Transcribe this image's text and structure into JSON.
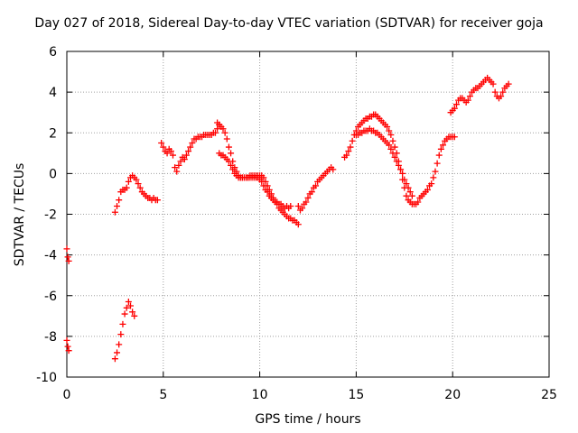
{
  "chart_data": {
    "type": "scatter",
    "title": "Day 027 of 2018, Sidereal Day-to-day VTEC variation (SDTVAR) for receiver goja",
    "xlabel": "GPS time / hours",
    "ylabel": "SDTVAR / TECUs",
    "xlim": [
      0,
      25
    ],
    "ylim": [
      -10,
      6
    ],
    "xticks": [
      0,
      5,
      10,
      15,
      20,
      25
    ],
    "yticks": [
      -10,
      -8,
      -6,
      -4,
      -2,
      0,
      2,
      4,
      6
    ],
    "grid": true,
    "marker": "+",
    "color": "#ff0000",
    "series": [
      {
        "name": "seg1",
        "x": [
          0.0,
          0.05,
          0.1
        ],
        "y": [
          -3.7,
          -4.1,
          -4.3
        ]
      },
      {
        "name": "seg2",
        "x": [
          0.0,
          0.05,
          0.1
        ],
        "y": [
          -8.2,
          -8.5,
          -8.7
        ]
      },
      {
        "name": "seg3",
        "x": [
          2.5,
          2.6,
          2.7,
          2.8,
          2.9,
          3.0,
          3.1,
          3.2,
          3.3,
          3.4,
          3.5
        ],
        "y": [
          -9.1,
          -8.8,
          -8.4,
          -7.9,
          -7.4,
          -6.9,
          -6.6,
          -6.3,
          -6.5,
          -6.8,
          -7.0
        ]
      },
      {
        "name": "seg4",
        "x": [
          2.5,
          2.6,
          2.7,
          2.8,
          2.9,
          3.0,
          3.1,
          3.2,
          3.3,
          3.4,
          3.5,
          3.6,
          3.7,
          3.8,
          3.9,
          4.0,
          4.1,
          4.2,
          4.3,
          4.4,
          4.5,
          4.6,
          4.7
        ],
        "y": [
          -1.9,
          -1.6,
          -1.3,
          -0.9,
          -0.8,
          -0.8,
          -0.7,
          -0.4,
          -0.2,
          -0.1,
          -0.2,
          -0.3,
          -0.5,
          -0.7,
          -0.9,
          -1.0,
          -1.1,
          -1.2,
          -1.2,
          -1.3,
          -1.2,
          -1.3,
          -1.3
        ]
      },
      {
        "name": "seg5",
        "x": [
          4.9,
          5.0,
          5.1,
          5.2,
          5.3,
          5.4,
          5.5,
          5.6,
          5.7,
          5.8,
          5.9,
          6.0,
          6.1,
          6.2,
          6.3,
          6.4,
          6.5,
          6.6,
          6.7,
          6.8,
          6.9,
          7.0,
          7.1,
          7.2,
          7.3,
          7.4,
          7.5,
          7.6,
          7.7,
          7.8,
          7.9
        ],
        "y": [
          1.5,
          1.3,
          1.1,
          1.0,
          1.2,
          1.1,
          0.9,
          0.3,
          0.1,
          0.4,
          0.6,
          0.8,
          0.7,
          0.9,
          1.1,
          1.3,
          1.5,
          1.7,
          1.7,
          1.8,
          1.8,
          1.8,
          1.9,
          1.9,
          1.9,
          1.9,
          1.9,
          2.0,
          2.0,
          2.2,
          2.4
        ]
      },
      {
        "name": "seg6",
        "x": [
          7.8,
          7.9,
          8.0,
          8.1,
          8.2,
          8.3,
          8.4,
          8.5,
          8.6,
          8.7,
          8.8,
          8.9,
          9.0,
          9.1,
          9.2,
          9.3,
          9.4,
          9.5,
          9.6,
          9.7,
          9.8,
          9.9,
          10.0,
          10.1,
          10.2,
          10.3,
          10.4,
          10.5,
          10.6,
          10.7,
          10.8,
          10.9,
          11.0,
          11.1,
          11.2,
          11.3,
          11.4,
          11.5,
          11.6,
          11.7,
          11.8,
          11.9,
          12.0
        ],
        "y": [
          2.5,
          2.4,
          2.3,
          2.2,
          2.0,
          1.7,
          1.3,
          1.0,
          0.6,
          0.3,
          0.1,
          -0.1,
          -0.2,
          -0.2,
          -0.2,
          -0.2,
          -0.2,
          -0.1,
          -0.1,
          -0.1,
          -0.1,
          -0.1,
          -0.1,
          -0.1,
          -0.2,
          -0.4,
          -0.6,
          -0.8,
          -1.0,
          -1.2,
          -1.4,
          -1.5,
          -1.7,
          -1.8,
          -1.9,
          -2.0,
          -2.1,
          -2.2,
          -2.2,
          -2.3,
          -2.3,
          -2.4,
          -2.5
        ]
      },
      {
        "name": "seg7",
        "x": [
          7.9,
          8.0,
          8.1,
          8.2,
          8.3,
          8.4,
          8.5,
          8.6,
          8.7,
          8.8,
          8.9,
          9.0,
          9.1,
          9.2,
          9.3,
          9.4,
          9.5,
          9.6,
          9.7,
          9.8,
          9.9,
          10.0,
          10.1,
          10.2,
          10.3,
          10.4,
          10.5,
          10.6,
          10.7,
          10.8,
          10.9,
          11.0,
          11.1,
          11.2,
          11.3,
          11.4,
          11.5,
          11.6
        ],
        "y": [
          1.0,
          0.9,
          0.9,
          0.8,
          0.7,
          0.6,
          0.4,
          0.2,
          0.0,
          -0.1,
          -0.2,
          -0.2,
          -0.2,
          -0.2,
          -0.2,
          -0.2,
          -0.2,
          -0.2,
          -0.2,
          -0.2,
          -0.2,
          -0.3,
          -0.4,
          -0.6,
          -0.8,
          -0.9,
          -1.1,
          -1.2,
          -1.3,
          -1.4,
          -1.4,
          -1.5,
          -1.5,
          -1.6,
          -1.7,
          -1.6,
          -1.7,
          -1.6
        ]
      },
      {
        "name": "seg8",
        "x": [
          12.0,
          12.1,
          12.2,
          12.3,
          12.4,
          12.5,
          12.6,
          12.7,
          12.8,
          12.9,
          13.0,
          13.1,
          13.2,
          13.3,
          13.4,
          13.5,
          13.6,
          13.7,
          13.8
        ],
        "y": [
          -1.6,
          -1.8,
          -1.7,
          -1.5,
          -1.4,
          -1.2,
          -1.0,
          -0.9,
          -0.7,
          -0.6,
          -0.4,
          -0.3,
          -0.2,
          -0.1,
          0.0,
          0.1,
          0.2,
          0.3,
          0.2
        ]
      },
      {
        "name": "seg9",
        "x": [
          14.4,
          14.5,
          14.6,
          14.7,
          14.8,
          14.9,
          15.0,
          15.1,
          15.2,
          15.3,
          15.4,
          15.5,
          15.6,
          15.7,
          15.8,
          15.9,
          16.0,
          16.1,
          16.2,
          16.3,
          16.4,
          16.5,
          16.6,
          16.7,
          16.8,
          16.9,
          17.0,
          17.1,
          17.2,
          17.3,
          17.4,
          17.5,
          17.6,
          17.7,
          17.8,
          17.9,
          18.0,
          18.1,
          18.2,
          18.3,
          18.4,
          18.5,
          18.6,
          18.7,
          18.8,
          18.9,
          19.0,
          19.1,
          19.2,
          19.3,
          19.4,
          19.5,
          19.6,
          19.7,
          19.8,
          19.9,
          20.0,
          20.1
        ],
        "y": [
          0.8,
          0.9,
          1.1,
          1.3,
          1.6,
          1.9,
          2.1,
          2.3,
          2.4,
          2.5,
          2.6,
          2.7,
          2.7,
          2.8,
          2.8,
          2.9,
          2.9,
          2.8,
          2.7,
          2.6,
          2.5,
          2.4,
          2.3,
          2.1,
          1.9,
          1.6,
          1.3,
          1.0,
          0.6,
          0.2,
          -0.3,
          -0.7,
          -1.1,
          -1.3,
          -1.4,
          -1.5,
          -1.5,
          -1.5,
          -1.4,
          -1.2,
          -1.1,
          -1.0,
          -0.9,
          -0.8,
          -0.6,
          -0.5,
          -0.2,
          0.1,
          0.5,
          0.9,
          1.2,
          1.4,
          1.6,
          1.7,
          1.8,
          1.8,
          1.8,
          1.8
        ]
      },
      {
        "name": "seg10",
        "x": [
          15.0,
          15.1,
          15.2,
          15.3,
          15.4,
          15.5,
          15.6,
          15.7,
          15.8,
          15.9,
          16.0,
          16.1,
          16.2,
          16.3,
          16.4,
          16.5,
          16.6,
          16.7,
          16.8,
          16.9,
          17.0,
          17.1,
          17.2,
          17.3,
          17.4,
          17.5,
          17.6,
          17.7,
          17.8,
          17.9
        ],
        "y": [
          1.9,
          1.9,
          2.0,
          2.0,
          2.1,
          2.1,
          2.1,
          2.2,
          2.1,
          2.1,
          2.0,
          2.0,
          1.9,
          1.8,
          1.7,
          1.6,
          1.5,
          1.4,
          1.2,
          1.0,
          0.8,
          0.6,
          0.4,
          0.2,
          0.0,
          -0.3,
          -0.5,
          -0.7,
          -0.9,
          -1.1
        ]
      },
      {
        "name": "seg11",
        "x": [
          19.9,
          20.0,
          20.1,
          20.2,
          20.3,
          20.4,
          20.5,
          20.6,
          20.7,
          20.8,
          20.9,
          21.0,
          21.1,
          21.2,
          21.3,
          21.4,
          21.5,
          21.6,
          21.7,
          21.8,
          21.9,
          22.0,
          22.1,
          22.2,
          22.3,
          22.4,
          22.5,
          22.6,
          22.7,
          22.8,
          22.9
        ],
        "y": [
          3.0,
          3.1,
          3.2,
          3.4,
          3.6,
          3.7,
          3.7,
          3.6,
          3.5,
          3.6,
          3.8,
          4.0,
          4.1,
          4.2,
          4.2,
          4.3,
          4.4,
          4.5,
          4.6,
          4.7,
          4.6,
          4.5,
          4.4,
          4.0,
          3.8,
          3.7,
          3.8,
          4.0,
          4.2,
          4.3,
          4.4
        ]
      }
    ]
  }
}
